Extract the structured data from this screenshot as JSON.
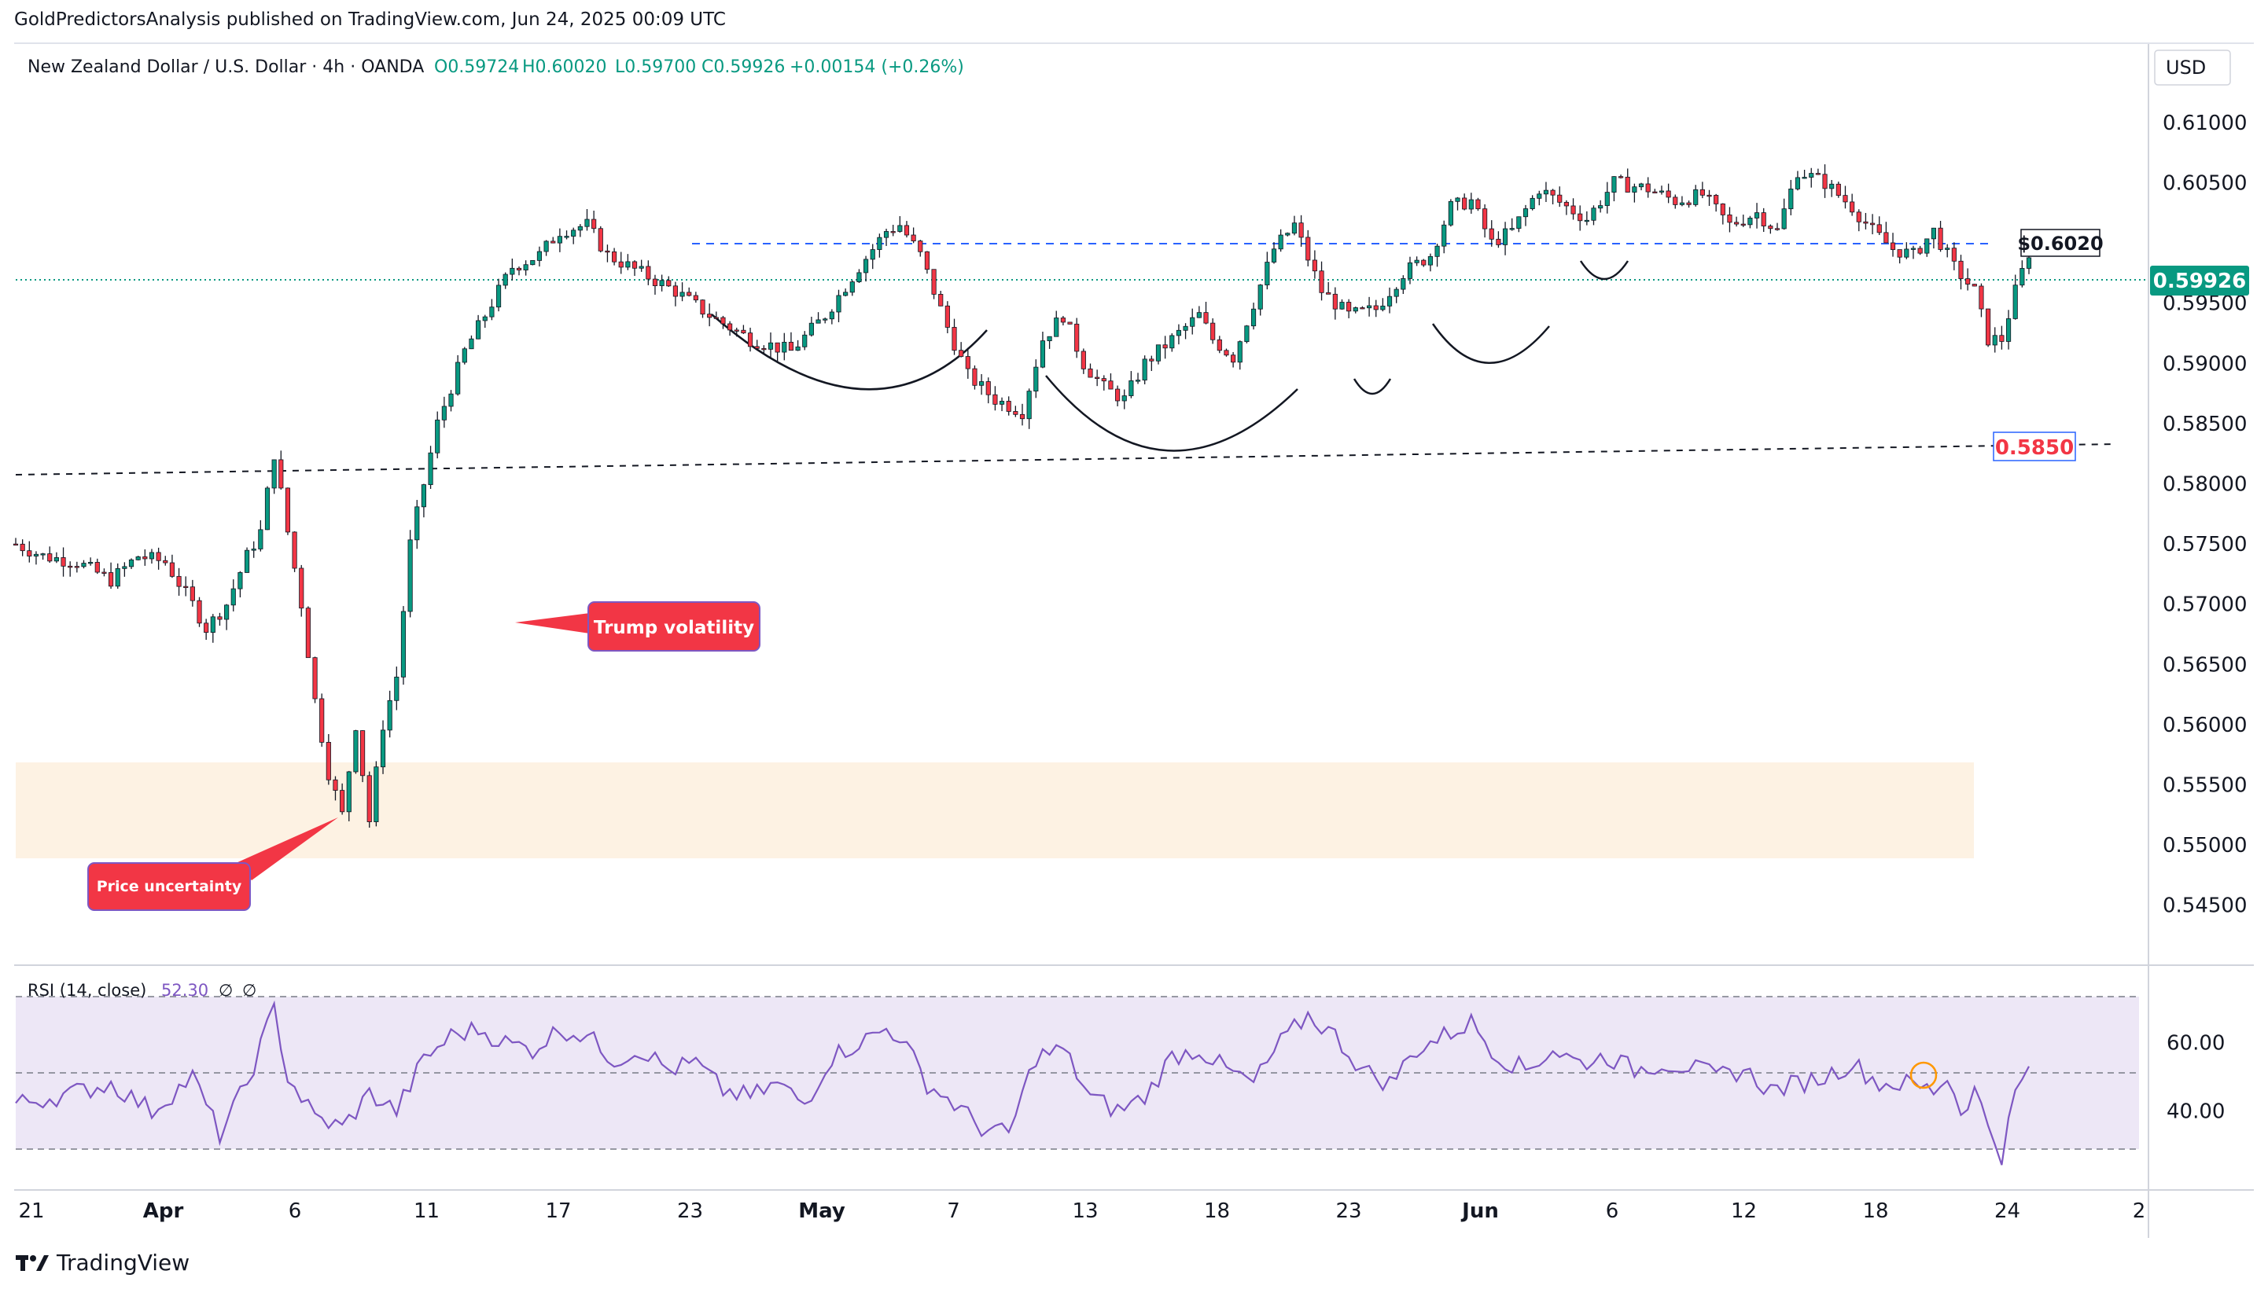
{
  "header": {
    "publisher": "GoldPredictorsAnalysis published on TradingView.com, Jun 24, 2025 00:09 UTC"
  },
  "legend": {
    "symbol": "New Zealand Dollar / U.S. Dollar · 4h · OANDA",
    "open": "O0.59724",
    "high": "H0.60020",
    "low": "L0.59700",
    "close": "C0.59926",
    "change": "+0.00154 (+0.26%)"
  },
  "currency": "USD",
  "price_badge": "0.59926",
  "resistance_label": "$0.6020",
  "support_label": "0.5850",
  "annotations": {
    "trump": "Trump volatility",
    "uncertainty": "Price uncertainty"
  },
  "rsi_title": {
    "name": "RSI (14, close)",
    "value": "52.30",
    "extra1": "∅",
    "extra2": "∅"
  },
  "footer": {
    "brand": "TradingView"
  },
  "colors": {
    "up": "#089981",
    "down": "#f23645",
    "rsi_line": "#7e57c2",
    "rsi_band": "#ede7f6",
    "zone": "#fdf2e3",
    "resistance": "#2962ff",
    "annotation": "#f23645"
  },
  "chart_data": {
    "type": "candlestick",
    "timeframe": "4h",
    "price_axis": {
      "ticks": [
        "0.61000",
        "0.60500",
        "0.59500",
        "0.59000",
        "0.58500",
        "0.58000",
        "0.57500",
        "0.57000",
        "0.56500",
        "0.56000",
        "0.55500",
        "0.55000",
        "0.54500"
      ],
      "ylim": [
        0.5425,
        0.613
      ]
    },
    "time_axis": {
      "ticks": [
        "21",
        "Apr",
        "6",
        "11",
        "17",
        "23",
        "May",
        "7",
        "13",
        "18",
        "23",
        "Jun",
        "6",
        "12",
        "18",
        "24",
        "2"
      ]
    },
    "price_path": [
      [
        0,
        0.575
      ],
      [
        4,
        0.574
      ],
      [
        9,
        0.5735
      ],
      [
        14,
        0.572
      ],
      [
        18,
        0.574
      ],
      [
        22,
        0.5735
      ],
      [
        26,
        0.57
      ],
      [
        28,
        0.568
      ],
      [
        31,
        0.57
      ],
      [
        34,
        0.574
      ],
      [
        36,
        0.576
      ],
      [
        38,
        0.5825
      ],
      [
        40,
        0.576
      ],
      [
        42,
        0.57
      ],
      [
        44,
        0.562
      ],
      [
        46,
        0.556
      ],
      [
        48,
        0.5525
      ],
      [
        50,
        0.56
      ],
      [
        52,
        0.552
      ],
      [
        54,
        0.56
      ],
      [
        56,
        0.564
      ],
      [
        58,
        0.575
      ],
      [
        60,
        0.58
      ],
      [
        62,
        0.585
      ],
      [
        64,
        0.588
      ],
      [
        66,
        0.591
      ],
      [
        68,
        0.593
      ],
      [
        70,
        0.595
      ],
      [
        73,
        0.598
      ],
      [
        77,
        0.599
      ],
      [
        80,
        0.601
      ],
      [
        84,
        0.6015
      ],
      [
        87,
        0.599
      ],
      [
        92,
        0.5975
      ],
      [
        97,
        0.596
      ],
      [
        102,
        0.594
      ],
      [
        108,
        0.592
      ],
      [
        114,
        0.591
      ],
      [
        119,
        0.594
      ],
      [
        124,
        0.598
      ],
      [
        128,
        0.601
      ],
      [
        130,
        0.6015
      ],
      [
        133,
        0.599
      ],
      [
        137,
        0.593
      ],
      [
        140,
        0.589
      ],
      [
        144,
        0.587
      ],
      [
        148,
        0.586
      ],
      [
        151,
        0.592
      ],
      [
        154,
        0.594
      ],
      [
        157,
        0.59
      ],
      [
        160,
        0.588
      ],
      [
        163,
        0.587
      ],
      [
        166,
        0.59
      ],
      [
        170,
        0.592
      ],
      [
        174,
        0.594
      ],
      [
        176,
        0.592
      ],
      [
        179,
        0.5905
      ],
      [
        182,
        0.595
      ],
      [
        185,
        0.5995
      ],
      [
        188,
        0.6015
      ],
      [
        192,
        0.596
      ],
      [
        196,
        0.594
      ],
      [
        200,
        0.5945
      ],
      [
        204,
        0.5975
      ],
      [
        208,
        0.599
      ],
      [
        211,
        0.603
      ],
      [
        214,
        0.6035
      ],
      [
        217,
        0.6
      ],
      [
        220,
        0.601
      ],
      [
        224,
        0.6045
      ],
      [
        228,
        0.603
      ],
      [
        231,
        0.602
      ],
      [
        235,
        0.605
      ],
      [
        240,
        0.6045
      ],
      [
        244,
        0.6035
      ],
      [
        248,
        0.604
      ],
      [
        252,
        0.6015
      ],
      [
        256,
        0.6025
      ],
      [
        259,
        0.601
      ],
      [
        262,
        0.606
      ],
      [
        266,
        0.605
      ],
      [
        270,
        0.603
      ],
      [
        273,
        0.601
      ],
      [
        276,
        0.5995
      ],
      [
        279,
        0.599
      ],
      [
        282,
        0.601
      ],
      [
        285,
        0.598
      ],
      [
        288,
        0.596
      ],
      [
        290,
        0.592
      ],
      [
        292,
        0.592
      ],
      [
        294,
        0.596
      ],
      [
        296,
        0.5992
      ]
    ],
    "rsi": {
      "levels": [
        30,
        50,
        70
      ],
      "ticks": [
        "60.00",
        "40.00"
      ],
      "ylim": [
        20,
        80
      ],
      "path": [
        [
          0,
          42
        ],
        [
          8,
          45
        ],
        [
          14,
          48
        ],
        [
          20,
          40
        ],
        [
          26,
          50
        ],
        [
          30,
          33
        ],
        [
          34,
          48
        ],
        [
          38,
          70
        ],
        [
          40,
          50
        ],
        [
          44,
          38
        ],
        [
          48,
          35
        ],
        [
          52,
          45
        ],
        [
          56,
          40
        ],
        [
          60,
          55
        ],
        [
          64,
          62
        ],
        [
          68,
          64
        ],
        [
          72,
          60
        ],
        [
          76,
          58
        ],
        [
          80,
          64
        ],
        [
          84,
          62
        ],
        [
          88,
          55
        ],
        [
          92,
          58
        ],
        [
          96,
          52
        ],
        [
          100,
          54
        ],
        [
          104,
          46
        ],
        [
          108,
          44
        ],
        [
          112,
          48
        ],
        [
          116,
          42
        ],
        [
          120,
          56
        ],
        [
          124,
          60
        ],
        [
          128,
          64
        ],
        [
          130,
          62
        ],
        [
          134,
          48
        ],
        [
          138,
          42
        ],
        [
          142,
          35
        ],
        [
          146,
          33
        ],
        [
          150,
          56
        ],
        [
          154,
          58
        ],
        [
          158,
          44
        ],
        [
          162,
          40
        ],
        [
          166,
          44
        ],
        [
          170,
          56
        ],
        [
          174,
          58
        ],
        [
          178,
          52
        ],
        [
          182,
          48
        ],
        [
          186,
          60
        ],
        [
          190,
          68
        ],
        [
          194,
          62
        ],
        [
          198,
          52
        ],
        [
          202,
          48
        ],
        [
          206,
          58
        ],
        [
          210,
          62
        ],
        [
          214,
          66
        ],
        [
          218,
          56
        ],
        [
          222,
          52
        ],
        [
          226,
          58
        ],
        [
          230,
          54
        ],
        [
          234,
          56
        ],
        [
          238,
          52
        ],
        [
          242,
          54
        ],
        [
          246,
          53
        ],
        [
          250,
          50
        ],
        [
          254,
          52
        ],
        [
          258,
          46
        ],
        [
          262,
          48
        ],
        [
          266,
          50
        ],
        [
          270,
          54
        ],
        [
          274,
          48
        ],
        [
          278,
          48
        ],
        [
          282,
          46
        ],
        [
          284,
          50
        ],
        [
          286,
          40
        ],
        [
          288,
          46
        ],
        [
          290,
          36
        ],
        [
          292,
          27
        ],
        [
          294,
          45
        ],
        [
          296,
          52
        ]
      ]
    }
  }
}
